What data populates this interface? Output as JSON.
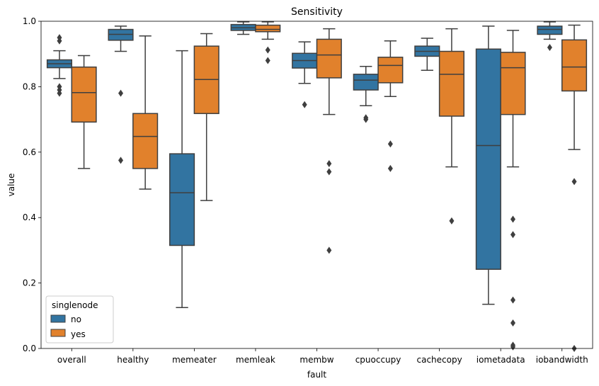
{
  "chart_data": {
    "type": "box",
    "title": "Sensitivity",
    "xlabel": "fault",
    "ylabel": "value",
    "ylim": [
      0,
      1
    ],
    "yticks": [
      "0.0",
      "0.2",
      "0.4",
      "0.6",
      "0.8",
      "1.0"
    ],
    "categories": [
      "overall",
      "healthy",
      "memeater",
      "memleak",
      "membw",
      "cpuoccupy",
      "cachecopy",
      "iometadata",
      "iobandwidth"
    ],
    "legend": {
      "title": "singlenode",
      "position": "lower-left"
    },
    "series": [
      {
        "name": "no",
        "color": "#3274a1",
        "boxes": [
          {
            "whislo": 0.825,
            "q1": 0.858,
            "med": 0.87,
            "q3": 0.882,
            "whishi": 0.91,
            "fliers": [
              0.95,
              0.94,
              0.8,
              0.79,
              0.78
            ]
          },
          {
            "whislo": 0.908,
            "q1": 0.942,
            "med": 0.96,
            "q3": 0.975,
            "whishi": 0.985,
            "fliers": [
              0.78,
              0.575
            ]
          },
          {
            "whislo": 0.125,
            "q1": 0.315,
            "med": 0.476,
            "q3": 0.595,
            "whishi": 0.91,
            "fliers": []
          },
          {
            "whislo": 0.96,
            "q1": 0.972,
            "med": 0.98,
            "q3": 0.99,
            "whishi": 0.998,
            "fliers": []
          },
          {
            "whislo": 0.81,
            "q1": 0.857,
            "med": 0.88,
            "q3": 0.902,
            "whishi": 0.937,
            "fliers": [
              0.745
            ]
          },
          {
            "whislo": 0.742,
            "q1": 0.79,
            "med": 0.82,
            "q3": 0.838,
            "whishi": 0.862,
            "fliers": [
              0.705,
              0.7
            ]
          },
          {
            "whislo": 0.85,
            "q1": 0.893,
            "med": 0.908,
            "q3": 0.924,
            "whishi": 0.948,
            "fliers": []
          },
          {
            "whislo": 0.135,
            "q1": 0.242,
            "med": 0.62,
            "q3": 0.915,
            "whishi": 0.985,
            "fliers": []
          },
          {
            "whislo": 0.945,
            "q1": 0.96,
            "med": 0.975,
            "q3": 0.985,
            "whishi": 0.998,
            "fliers": [
              0.92
            ]
          }
        ]
      },
      {
        "name": "yes",
        "color": "#e1812c",
        "boxes": [
          {
            "whislo": 0.55,
            "q1": 0.692,
            "med": 0.782,
            "q3": 0.86,
            "whishi": 0.895,
            "fliers": []
          },
          {
            "whislo": 0.487,
            "q1": 0.55,
            "med": 0.648,
            "q3": 0.718,
            "whishi": 0.955,
            "fliers": []
          },
          {
            "whislo": 0.452,
            "q1": 0.718,
            "med": 0.822,
            "q3": 0.924,
            "whishi": 0.962,
            "fliers": []
          },
          {
            "whislo": 0.945,
            "q1": 0.968,
            "med": 0.975,
            "q3": 0.988,
            "whishi": 0.998,
            "fliers": [
              0.912,
              0.88
            ]
          },
          {
            "whislo": 0.715,
            "q1": 0.827,
            "med": 0.897,
            "q3": 0.945,
            "whishi": 0.977,
            "fliers": [
              0.565,
              0.54,
              0.3
            ]
          },
          {
            "whislo": 0.77,
            "q1": 0.812,
            "med": 0.865,
            "q3": 0.89,
            "whishi": 0.94,
            "fliers": [
              0.625,
              0.55
            ]
          },
          {
            "whislo": 0.555,
            "q1": 0.71,
            "med": 0.838,
            "q3": 0.908,
            "whishi": 0.977,
            "fliers": [
              0.39
            ]
          },
          {
            "whislo": 0.555,
            "q1": 0.715,
            "med": 0.858,
            "q3": 0.905,
            "whishi": 0.972,
            "fliers": [
              0.395,
              0.348,
              0.148,
              0.078,
              0.01,
              0.005
            ]
          },
          {
            "whislo": 0.608,
            "q1": 0.787,
            "med": 0.86,
            "q3": 0.943,
            "whishi": 0.988,
            "fliers": [
              0.51,
              0.0
            ]
          }
        ]
      }
    ],
    "line_color": "#3f3f3f"
  }
}
